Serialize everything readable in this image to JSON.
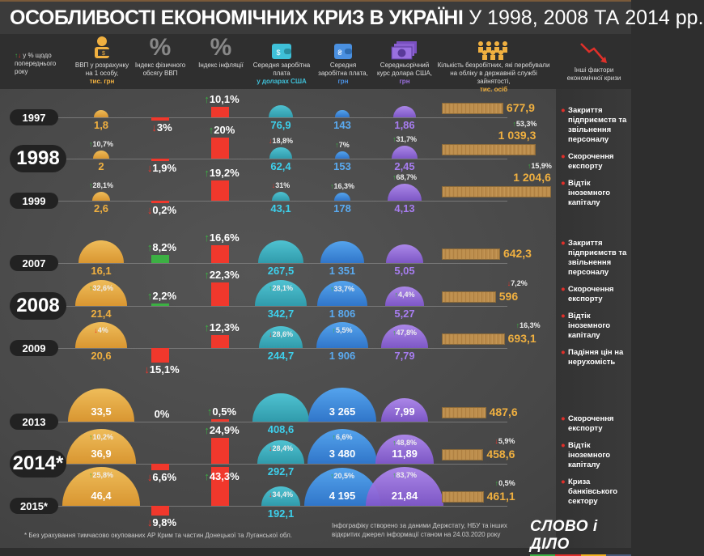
{
  "title": {
    "bold": "ОСОБЛИВОСТІ ЕКОНОМІЧНИХ КРИЗ В УКРАЇНІ",
    "rest": "У 1998, 2008 ТА 2014 рр."
  },
  "legend": {
    "text": "у % щодо попереднього року"
  },
  "columns": [
    {
      "label": "ВВП у розрахунку на 1 особу,",
      "unit": "тис. грн",
      "icon": "person-money-icon",
      "color": "#f0b040"
    },
    {
      "label": "Індекс фізичного обсягу ВВП",
      "unit": "",
      "icon": "percent-icon",
      "color": "#888888"
    },
    {
      "label": "Індекс інфляції",
      "unit": "",
      "icon": "percent-icon",
      "color": "#888888"
    },
    {
      "label": "Середня заробітна плата",
      "unit": "у доларах США",
      "icon": "wallet-dollar-icon",
      "color": "#3fc0d8"
    },
    {
      "label": "Середня заробітна плата,",
      "unit": "грн",
      "icon": "wallet-hryvnia-icon",
      "color": "#4a90e0"
    },
    {
      "label": "Середньорічний курс долара США,",
      "unit": "грн",
      "icon": "banknotes-icon",
      "color": "#9a70e0"
    },
    {
      "label": "Кількість безробітних, які перебували на обліку в державній службі зайнятості,",
      "unit": "тис. осіб",
      "icon": "people-icon",
      "color": "#f0b040"
    },
    {
      "label": "Інші фактори економічної кризи",
      "unit": "",
      "icon": "falling-chart-icon",
      "color": "#e0302a"
    }
  ],
  "colors": {
    "gdp": "#f0b040",
    "wage_usd": "#3fb8cc",
    "wage_uah": "#3f8fe0",
    "rate": "#9a6fe0",
    "up": "#3cb043",
    "down": "#f0382c",
    "unemployment": "#c09050"
  },
  "rows": [
    {
      "year": "1997",
      "crisis": false,
      "gdp": {
        "value": "1,8"
      },
      "phys": {
        "dir": "down",
        "value": "3%"
      },
      "infl": {
        "dir": "up",
        "value": "10,1%"
      },
      "wage_usd": {
        "value": "76,9"
      },
      "wage_uah": {
        "value": "143"
      },
      "rate": {
        "value": "1,86"
      },
      "unemp": {
        "value": "677,9"
      }
    },
    {
      "year": "1998",
      "crisis": true,
      "gdp": {
        "value": "2",
        "chg": "10,7%",
        "dir": "up"
      },
      "phys": {
        "dir": "down",
        "value": "1,9%"
      },
      "infl": {
        "dir": "up",
        "value": "20%"
      },
      "wage_usd": {
        "value": "62,4",
        "chg": "18,8%",
        "dir": "down"
      },
      "wage_uah": {
        "value": "153",
        "chg": "7%",
        "dir": "up"
      },
      "rate": {
        "value": "2,45",
        "chg": "31,7%",
        "dir": "up"
      },
      "unemp": {
        "value": "1 039,3",
        "chg": "53,3%",
        "dir": "up"
      }
    },
    {
      "year": "1999",
      "crisis": false,
      "gdp": {
        "value": "2,6",
        "chg": "28,1%",
        "dir": "up"
      },
      "phys": {
        "dir": "down",
        "value": "0,2%"
      },
      "infl": {
        "dir": "up",
        "value": "19,2%"
      },
      "wage_usd": {
        "value": "43,1",
        "chg": "31%",
        "dir": "down"
      },
      "wage_uah": {
        "value": "178",
        "chg": "16,3%",
        "dir": "up"
      },
      "rate": {
        "value": "4,13",
        "chg": "68,7%",
        "dir": "up"
      },
      "unemp": {
        "value": "1 204,6",
        "chg": "15,9%",
        "dir": "up"
      }
    },
    {
      "year": "2007",
      "crisis": false,
      "gdp": {
        "value": "16,1"
      },
      "phys": {
        "dir": "up",
        "value": "8,2%"
      },
      "infl": {
        "dir": "up",
        "value": "16,6%"
      },
      "wage_usd": {
        "value": "267,5"
      },
      "wage_uah": {
        "value": "1 351"
      },
      "rate": {
        "value": "5,05"
      },
      "unemp": {
        "value": "642,3"
      }
    },
    {
      "year": "2008",
      "crisis": true,
      "gdp": {
        "value": "21,4",
        "chg": "32,6%",
        "dir": "up"
      },
      "phys": {
        "dir": "up",
        "value": "2,2%"
      },
      "infl": {
        "dir": "up",
        "value": "22,3%"
      },
      "wage_usd": {
        "value": "342,7",
        "chg": "28,1%",
        "dir": "up"
      },
      "wage_uah": {
        "value": "1 806",
        "chg": "33,7%",
        "dir": "up"
      },
      "rate": {
        "value": "5,27",
        "chg": "4,4%",
        "dir": "up"
      },
      "unemp": {
        "value": "596",
        "chg": "7,2%",
        "dir": "down"
      }
    },
    {
      "year": "2009",
      "crisis": false,
      "gdp": {
        "value": "20,6",
        "chg": "4%",
        "dir": "down"
      },
      "phys": {
        "dir": "down",
        "value": "15,1%"
      },
      "infl": {
        "dir": "up",
        "value": "12,3%"
      },
      "wage_usd": {
        "value": "244,7",
        "chg": "28,6%",
        "dir": "down"
      },
      "wage_uah": {
        "value": "1 906",
        "chg": "5,5%",
        "dir": "up"
      },
      "rate": {
        "value": "7,79",
        "chg": "47,8%",
        "dir": "up"
      },
      "unemp": {
        "value": "693,1",
        "chg": "16,3%",
        "dir": "up"
      }
    },
    {
      "year": "2013",
      "crisis": false,
      "gdp": {
        "value": "33,5"
      },
      "phys": {
        "dir": "none",
        "value": "0%"
      },
      "infl": {
        "dir": "up",
        "value": "0,5%"
      },
      "wage_usd": {
        "value": "408,6"
      },
      "wage_uah": {
        "value": "3 265"
      },
      "rate": {
        "value": "7,99"
      },
      "unemp": {
        "value": "487,6"
      }
    },
    {
      "year": "2014*",
      "crisis": true,
      "gdp": {
        "value": "36,9",
        "chg": "10,2%",
        "dir": "up"
      },
      "phys": {
        "dir": "down",
        "value": "6,6%"
      },
      "infl": {
        "dir": "up",
        "value": "24,9%"
      },
      "wage_usd": {
        "value": "292,7",
        "chg": "28,4%",
        "dir": "down"
      },
      "wage_uah": {
        "value": "3 480",
        "chg": "6,6%",
        "dir": "up"
      },
      "rate": {
        "value": "11,89",
        "chg": "48,8%",
        "dir": "up"
      },
      "unemp": {
        "value": "458,6",
        "chg": "5,9%",
        "dir": "down"
      }
    },
    {
      "year": "2015*",
      "crisis": false,
      "gdp": {
        "value": "46,4",
        "chg": "25,8%",
        "dir": "up"
      },
      "phys": {
        "dir": "down",
        "value": "9,8%"
      },
      "infl": {
        "dir": "up",
        "value": "43,3%"
      },
      "wage_usd": {
        "value": "192,1",
        "chg": "34,4%",
        "dir": "down"
      },
      "wage_uah": {
        "value": "4 195",
        "chg": "20,5%",
        "dir": "up"
      },
      "rate": {
        "value": "21,84",
        "chg": "83,7%",
        "dir": "up"
      },
      "unemp": {
        "value": "461,1",
        "chg": "0,5%",
        "dir": "up"
      }
    }
  ],
  "factors": [
    [
      "Закриття підприємств та звільнення персоналу",
      "Скорочення експорту",
      "Відтік іноземного капіталу"
    ],
    [
      "Закриття підприємств та звільнення персоналу",
      "Скорочення експорту",
      "Відтік іноземного капіталу",
      "Падіння цін на нерухомість"
    ],
    [
      "Скорочення експорту",
      "Відтік іноземного капіталу",
      "Криза банківського сектору"
    ]
  ],
  "footer": {
    "note": "* Без урахування тимчасово окупованих АР Крим та частин Донецької та Луганської обл.",
    "source": "Інфографіку створено за даними Держстату, НБУ та інших відкритих джерел інформації станом на 24.03.2020 року",
    "logo": "СЛОВО і ДІЛО"
  }
}
